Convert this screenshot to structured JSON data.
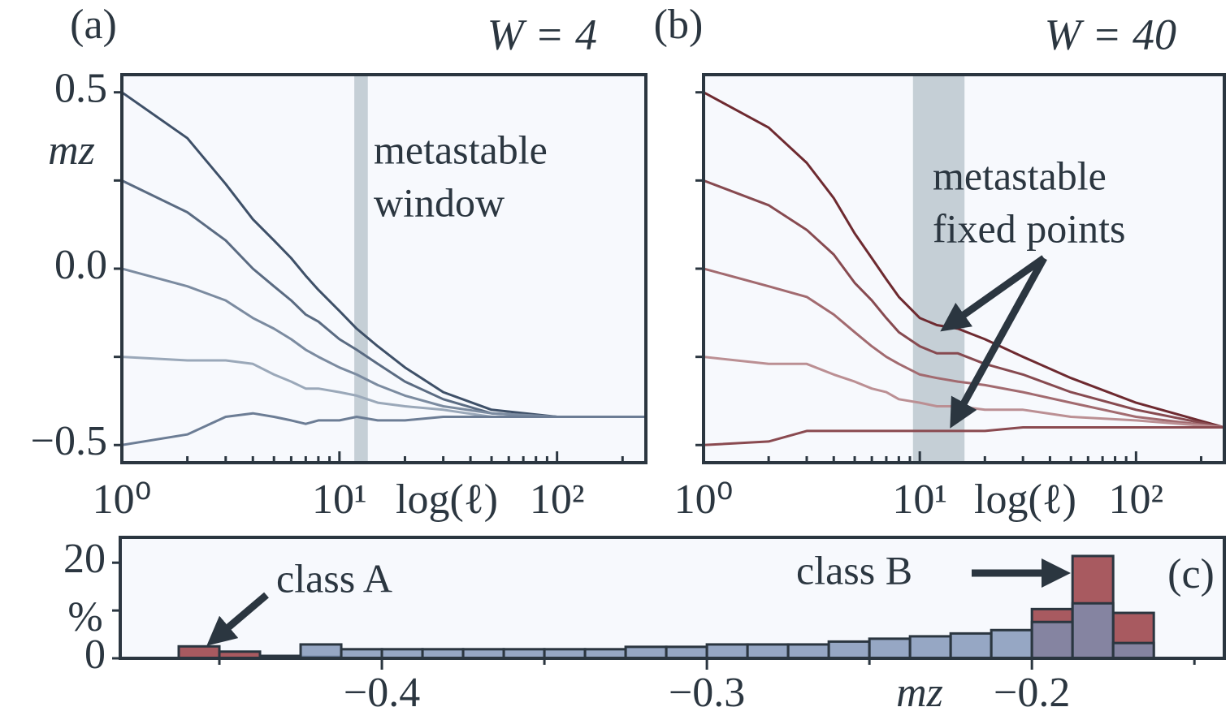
{
  "chart_data": [
    {
      "type": "line",
      "label": "(a)",
      "title": "W = 4",
      "xlabel": "log(ℓ)",
      "ylabel": "mz",
      "xscale": "log",
      "xlim": [
        1,
        256
      ],
      "ylim": [
        -0.55,
        0.55
      ],
      "xticks": [
        {
          "value": 1,
          "label": "10⁰"
        },
        {
          "value": 10,
          "label": "10¹"
        },
        {
          "value": 100,
          "label": "10²"
        }
      ],
      "xminor": [
        2,
        3,
        4,
        5,
        6,
        7,
        8,
        9,
        20,
        30,
        40,
        50,
        60,
        70,
        80,
        90,
        200
      ],
      "yticks": [
        {
          "value": -0.5,
          "label": "−0.5"
        },
        {
          "value": 0,
          "label": "0.0"
        },
        0.5
      ],
      "yminor": [
        -0.25,
        0.25
      ],
      "ytick_labels": true,
      "span": [
        11.7,
        13.5
      ],
      "span_color": "#c5cfd6",
      "annotation": [
        "metastable",
        "window"
      ],
      "x": [
        1,
        2,
        3,
        4,
        5,
        6,
        7,
        8,
        10,
        12,
        15,
        20,
        30,
        50,
        100,
        256
      ],
      "series": [
        {
          "color": "#3e5068",
          "values": [
            0.5,
            0.37,
            0.24,
            0.14,
            0.08,
            0.03,
            -0.02,
            -0.06,
            -0.12,
            -0.17,
            -0.22,
            -0.28,
            -0.35,
            -0.4,
            -0.42,
            -0.42
          ]
        },
        {
          "color": "#5a6b82",
          "values": [
            0.25,
            0.16,
            0.08,
            0.0,
            -0.05,
            -0.09,
            -0.13,
            -0.15,
            -0.2,
            -0.23,
            -0.27,
            -0.32,
            -0.37,
            -0.41,
            -0.42,
            -0.42
          ]
        },
        {
          "color": "#7b8ba0",
          "values": [
            0,
            -0.05,
            -0.09,
            -0.14,
            -0.17,
            -0.2,
            -0.23,
            -0.25,
            -0.28,
            -0.3,
            -0.33,
            -0.36,
            -0.39,
            -0.41,
            -0.42,
            -0.42
          ]
        },
        {
          "color": "#9aa8b9",
          "values": [
            -0.25,
            -0.26,
            -0.26,
            -0.27,
            -0.3,
            -0.32,
            -0.34,
            -0.34,
            -0.35,
            -0.36,
            -0.38,
            -0.39,
            -0.4,
            -0.42,
            -0.42,
            -0.42
          ]
        },
        {
          "color": "#6c7d95",
          "values": [
            -0.5,
            -0.47,
            -0.42,
            -0.41,
            -0.42,
            -0.43,
            -0.44,
            -0.43,
            -0.43,
            -0.42,
            -0.43,
            -0.43,
            -0.42,
            -0.42,
            -0.42,
            -0.42
          ]
        }
      ]
    },
    {
      "type": "line",
      "label": "(b)",
      "title": "W = 40",
      "xlabel": "log(ℓ)",
      "xscale": "log",
      "xlim": [
        1,
        256
      ],
      "ylim": [
        -0.55,
        0.55
      ],
      "xticks": [
        {
          "value": 1,
          "label": "10⁰"
        },
        {
          "value": 10,
          "label": "10¹"
        },
        {
          "value": 100,
          "label": "10²"
        }
      ],
      "xminor": [
        2,
        3,
        4,
        5,
        6,
        7,
        8,
        9,
        20,
        30,
        40,
        50,
        60,
        70,
        80,
        90,
        200
      ],
      "yticks": [
        -0.5,
        0,
        0.5
      ],
      "yminor": [
        -0.25,
        0.25
      ],
      "ytick_labels": false,
      "span": [
        9.3,
        16.1
      ],
      "span_color": "#c5cfd6",
      "annotation": [
        "metastable",
        "fixed points"
      ],
      "x": [
        1,
        2,
        3,
        4,
        5,
        6,
        7,
        8,
        10,
        12,
        15,
        20,
        30,
        50,
        100,
        256
      ],
      "series": [
        {
          "color": "#6e2a30",
          "values": [
            0.5,
            0.4,
            0.3,
            0.2,
            0.1,
            0.03,
            -0.03,
            -0.08,
            -0.14,
            -0.16,
            -0.17,
            -0.2,
            -0.25,
            -0.31,
            -0.38,
            -0.45
          ]
        },
        {
          "color": "#874a50",
          "values": [
            0.25,
            0.18,
            0.11,
            0.04,
            -0.04,
            -0.09,
            -0.14,
            -0.18,
            -0.22,
            -0.24,
            -0.24,
            -0.27,
            -0.3,
            -0.35,
            -0.4,
            -0.45
          ]
        },
        {
          "color": "#a26a6f",
          "values": [
            0,
            -0.05,
            -0.08,
            -0.13,
            -0.18,
            -0.22,
            -0.25,
            -0.27,
            -0.3,
            -0.31,
            -0.32,
            -0.33,
            -0.35,
            -0.38,
            -0.42,
            -0.45
          ]
        },
        {
          "color": "#bb8f93",
          "values": [
            -0.25,
            -0.27,
            -0.27,
            -0.3,
            -0.32,
            -0.34,
            -0.35,
            -0.37,
            -0.38,
            -0.39,
            -0.39,
            -0.4,
            -0.4,
            -0.42,
            -0.43,
            -0.45
          ]
        },
        {
          "color": "#8a4a50",
          "values": [
            -0.5,
            -0.49,
            -0.46,
            -0.46,
            -0.46,
            -0.46,
            -0.46,
            -0.46,
            -0.46,
            -0.46,
            -0.46,
            -0.46,
            -0.45,
            -0.45,
            -0.45,
            -0.45
          ]
        }
      ]
    },
    {
      "type": "histogram",
      "label": "(c)",
      "xlabel": "mz",
      "ylabel": "%",
      "xlim": [
        -0.4805,
        -0.1408
      ],
      "ylim": [
        0,
        25.3
      ],
      "xticks": [
        {
          "value": -0.4,
          "label": "−0.4"
        },
        {
          "value": -0.3,
          "label": "−0.3"
        },
        {
          "value": -0.2,
          "label": "−0.2"
        }
      ],
      "xminor": [
        -0.45,
        -0.35,
        -0.25,
        -0.15
      ],
      "yticks": [
        0,
        20
      ],
      "yminor": [
        10
      ],
      "ytick_labels": true,
      "annotation": [
        "class A",
        "class B"
      ],
      "bins": [
        -0.4625,
        -0.45,
        -0.4375,
        -0.425,
        -0.4125,
        -0.4,
        -0.3875,
        -0.375,
        -0.3625,
        -0.35,
        -0.3375,
        -0.325,
        -0.3125,
        -0.3,
        -0.2875,
        -0.275,
        -0.2625,
        -0.25,
        -0.2375,
        -0.225,
        -0.2125,
        -0.2,
        -0.1875,
        -0.175,
        -0.1625
      ],
      "series": [
        {
          "color": "#a85a60",
          "values": [
            2.5,
            1.4,
            0.5,
            0.3,
            0,
            0,
            0,
            0,
            0,
            0,
            0,
            0,
            0,
            0,
            0,
            0,
            0,
            0,
            0,
            0,
            0,
            10.3,
            21.4,
            9.5
          ]
        },
        {
          "color": "#7b90b4",
          "values": [
            0,
            0,
            0.5,
            2.9,
            1.9,
            1.9,
            1.9,
            1.9,
            1.9,
            1.9,
            1.9,
            2.4,
            2.4,
            2.9,
            2.9,
            2.9,
            3.5,
            4.1,
            4.6,
            5.2,
            5.9,
            7.6,
            11.5,
            3.2
          ]
        }
      ]
    }
  ]
}
